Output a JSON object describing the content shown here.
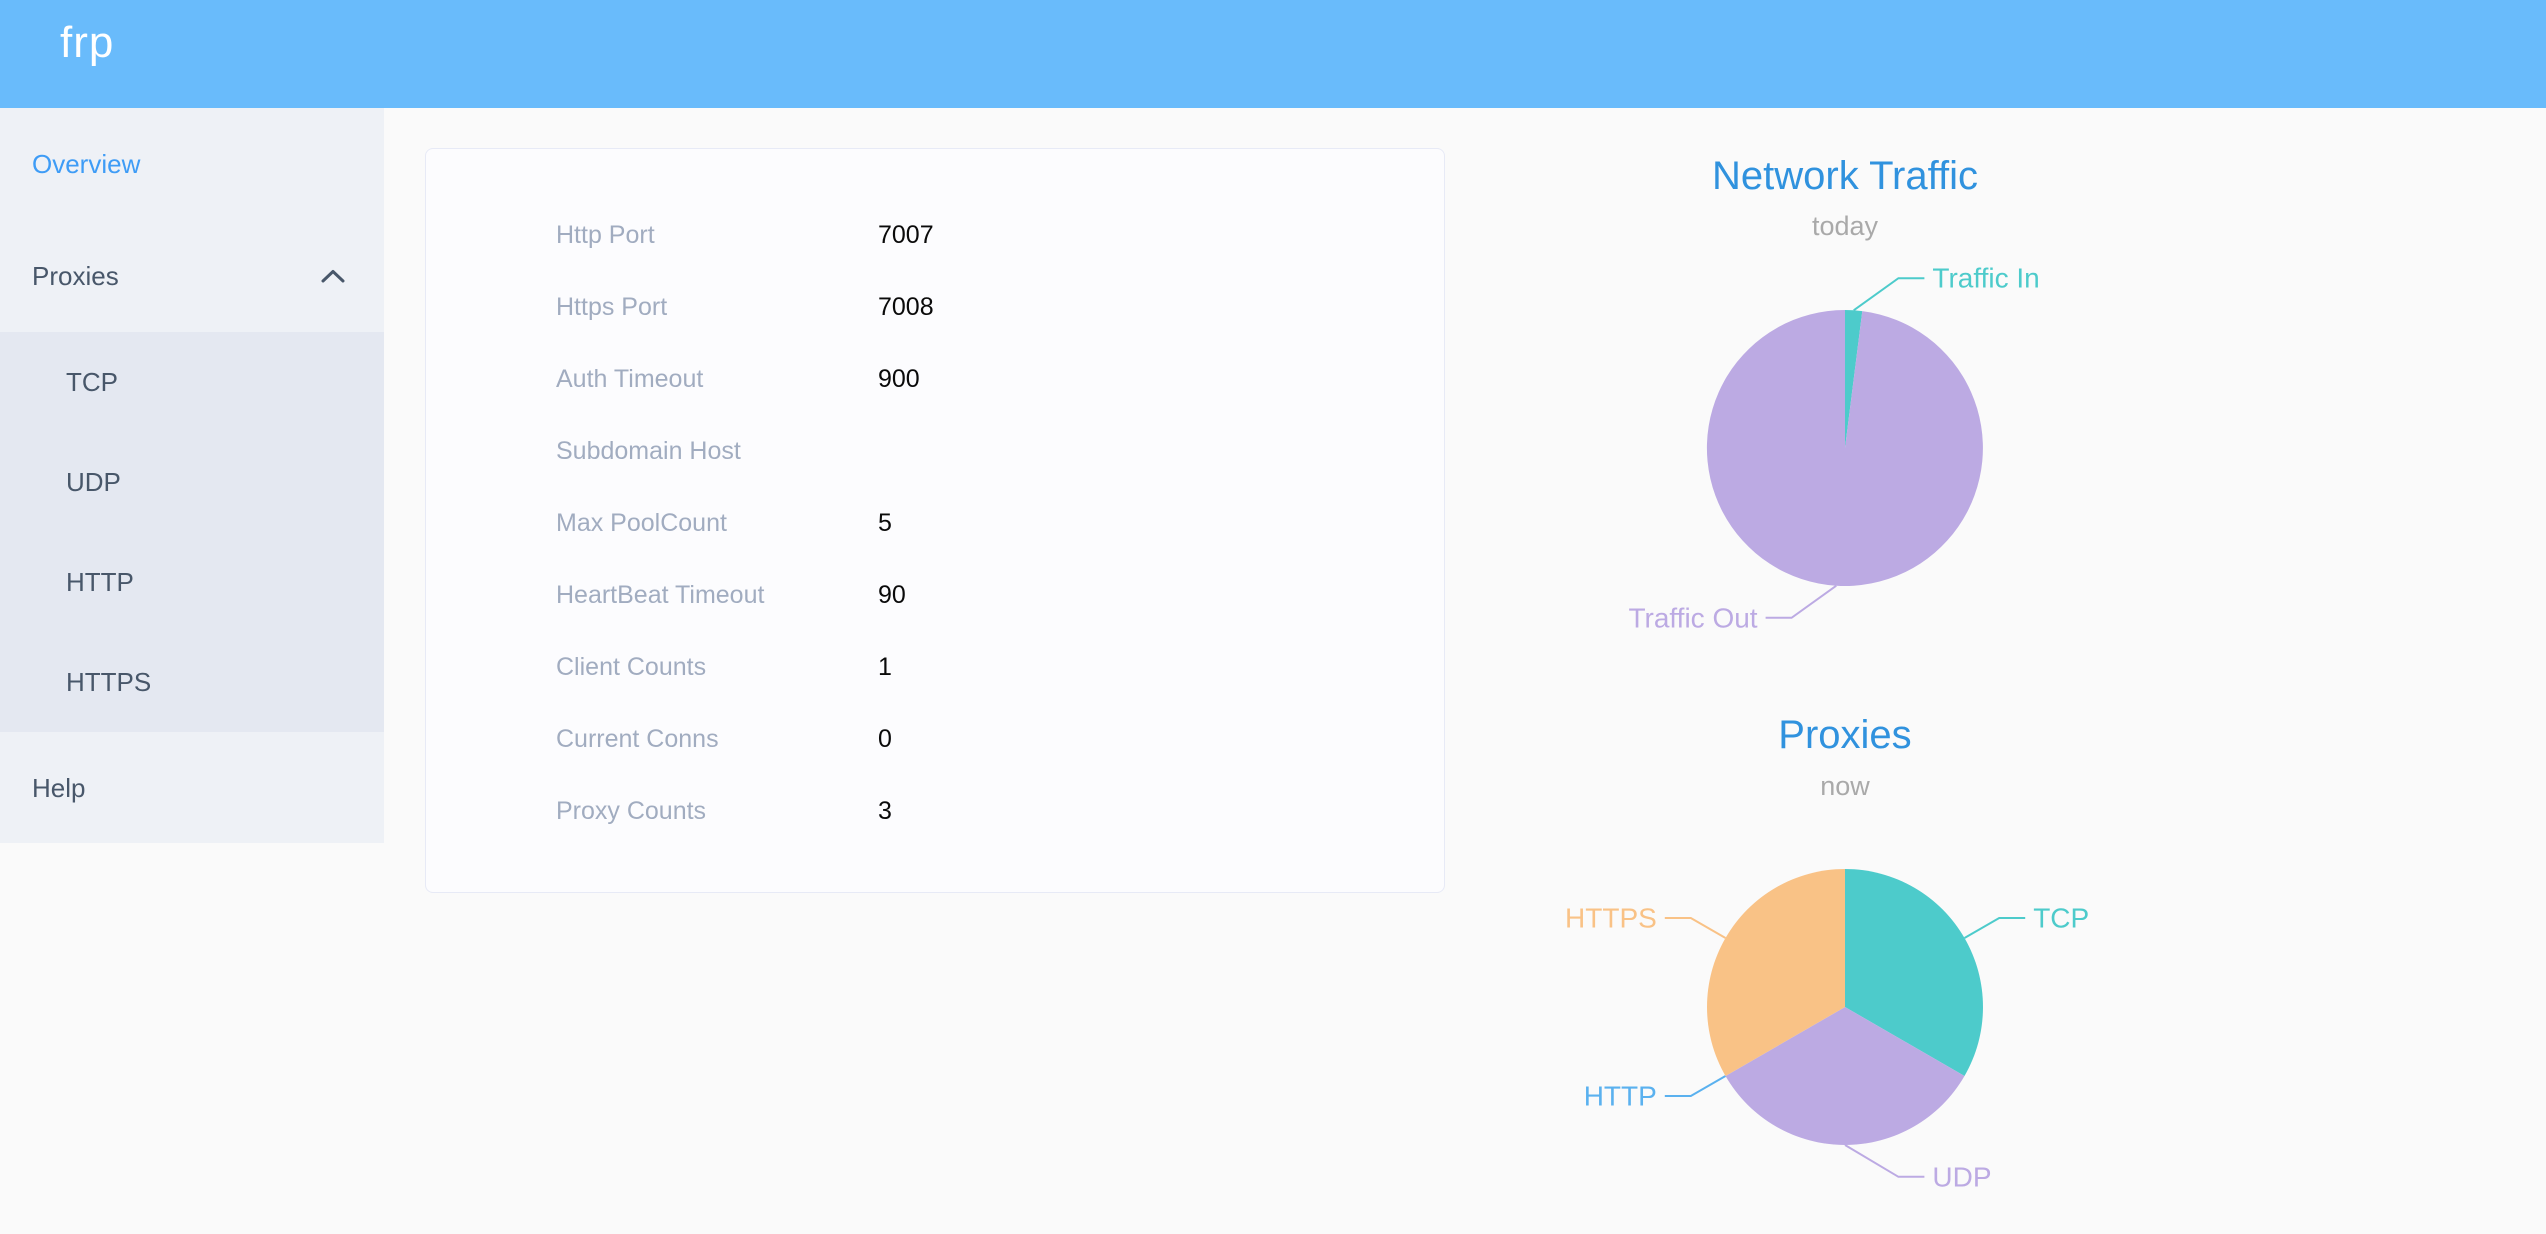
{
  "header": {
    "logo": "frp"
  },
  "sidebar": {
    "overview": "Overview",
    "proxies": "Proxies",
    "proxies_expanded": true,
    "submenu": [
      "TCP",
      "UDP",
      "HTTP",
      "HTTPS"
    ],
    "help": "Help"
  },
  "server_config": {
    "rows": [
      {
        "label": "Http Port",
        "value": "7007"
      },
      {
        "label": "Https Port",
        "value": "7008"
      },
      {
        "label": "Auth Timeout",
        "value": "900"
      },
      {
        "label": "Subdomain Host",
        "value": ""
      },
      {
        "label": "Max PoolCount",
        "value": "5"
      },
      {
        "label": "HeartBeat Timeout",
        "value": "90"
      },
      {
        "label": "Client Counts",
        "value": "1"
      },
      {
        "label": "Current Conns",
        "value": "0"
      },
      {
        "label": "Proxy Counts",
        "value": "3"
      }
    ]
  },
  "chart_data": [
    {
      "type": "pie",
      "title": "Network Traffic",
      "subtitle": "today",
      "labels_position": "outside",
      "values_are": "estimated percent of pie area",
      "series": [
        {
          "name": "Traffic In",
          "value": 2,
          "color": "#4DCBCB"
        },
        {
          "name": "Traffic Out",
          "value": 98,
          "color": "#BCAAE3"
        }
      ]
    },
    {
      "type": "pie",
      "title": "Proxies",
      "subtitle": "now",
      "labels_position": "outside",
      "values_are": "proxy counts",
      "series": [
        {
          "name": "TCP",
          "value": 1,
          "color": "#4DCBCB"
        },
        {
          "name": "UDP",
          "value": 1,
          "color": "#BCAAE3"
        },
        {
          "name": "HTTP",
          "value": 0,
          "color": "#5AB1EF"
        },
        {
          "name": "HTTPS",
          "value": 1,
          "color": "#F9C286"
        }
      ]
    }
  ],
  "colors": {
    "header_bg": "#69BBFB",
    "sidebar_bg": "#EEF1F6",
    "submenu_bg": "#E4E8F1",
    "menu_text": "#48576A",
    "active_menu_text": "#3E9CF6",
    "chart_title": "#3092DE",
    "chart_subtitle": "#A9A9A9",
    "card_border": "#E7EAF6",
    "card_bg": "#FCFCFE",
    "card_label": "#A1ACC0",
    "card_value": "#0A0A0A",
    "page_bg": "#FAFAFA"
  }
}
